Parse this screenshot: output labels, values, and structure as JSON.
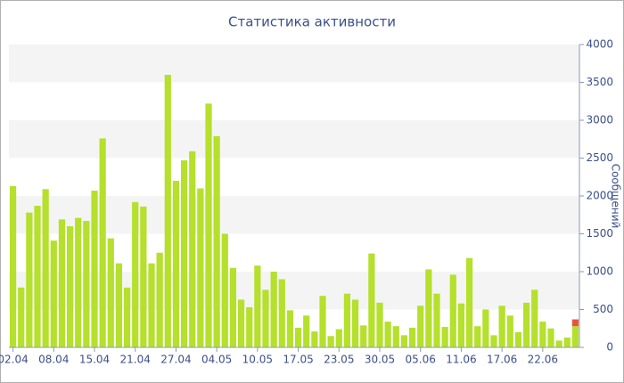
{
  "chart_data": {
    "type": "stacked-bar",
    "title": "Статистика активности",
    "y_label": "Сообщений",
    "categories": [
      "02.04",
      null,
      null,
      null,
      null,
      "08.04",
      null,
      null,
      null,
      null,
      "15.04",
      null,
      null,
      null,
      null,
      "21.04",
      null,
      null,
      null,
      null,
      "27.04",
      null,
      null,
      null,
      null,
      "04.05",
      null,
      null,
      null,
      null,
      "10.05",
      null,
      null,
      null,
      null,
      "17.05",
      null,
      null,
      null,
      null,
      "23.05",
      null,
      null,
      null,
      null,
      "30.05",
      null,
      null,
      null,
      null,
      "05.06",
      null,
      null,
      null,
      null,
      "11.06",
      null,
      null,
      null,
      null,
      "17.06",
      null,
      null,
      null,
      null,
      "22.06",
      null,
      null,
      null,
      null
    ],
    "series": [
      {
        "color": "#b5e02b",
        "values": [
          2130,
          790,
          1780,
          1870,
          2090,
          1410,
          1690,
          1600,
          1710,
          1670,
          2070,
          2760,
          1440,
          1110,
          790,
          1920,
          1860,
          1110,
          1250,
          3600,
          2200,
          2470,
          2590,
          2100,
          3220,
          2790,
          1500,
          1050,
          630,
          530,
          1080,
          760,
          1000,
          900,
          490,
          260,
          420,
          210,
          680,
          150,
          240,
          710,
          630,
          290,
          1240,
          590,
          340,
          280,
          160,
          260,
          550,
          1030,
          710,
          270,
          960,
          580,
          1180,
          280,
          500,
          160,
          550,
          420,
          200,
          590,
          760,
          340,
          250,
          90,
          130,
          280
        ]
      },
      {
        "color": "#e8553a",
        "values": [
          null,
          null,
          null,
          null,
          null,
          null,
          null,
          null,
          null,
          null,
          null,
          null,
          null,
          null,
          null,
          null,
          null,
          null,
          null,
          null,
          null,
          null,
          null,
          null,
          null,
          null,
          null,
          null,
          null,
          null,
          null,
          null,
          null,
          null,
          null,
          null,
          null,
          null,
          null,
          null,
          null,
          null,
          null,
          null,
          null,
          null,
          null,
          null,
          null,
          null,
          null,
          null,
          null,
          null,
          null,
          null,
          null,
          null,
          null,
          null,
          null,
          null,
          null,
          null,
          null,
          null,
          null,
          null,
          null,
          90
        ]
      }
    ],
    "ylim": [
      0,
      4000
    ],
    "yticks": [
      0,
      500,
      1000,
      1500,
      2000,
      2500,
      3000,
      3500,
      4000
    ],
    "grid": "bands",
    "y_axis_side": "right"
  }
}
